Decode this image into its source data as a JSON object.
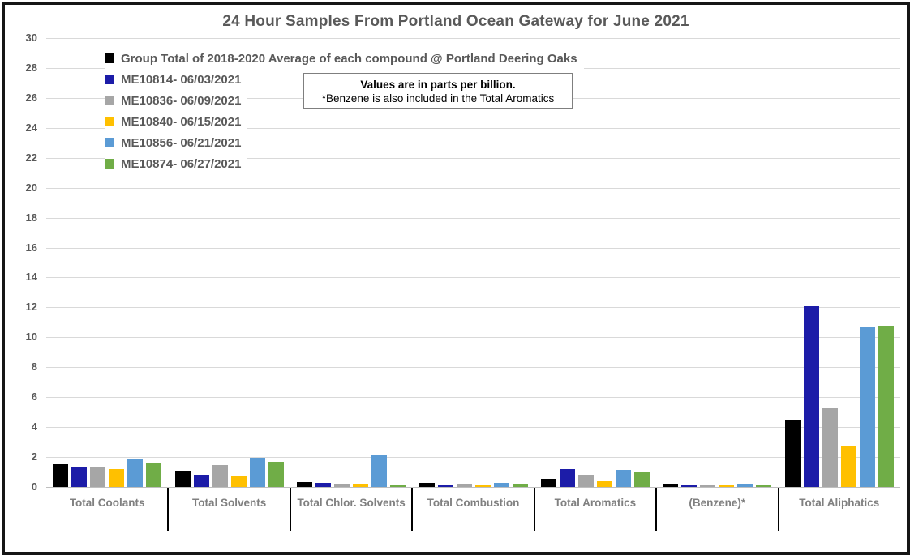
{
  "chart_data": {
    "type": "bar",
    "title": "24 Hour Samples From Portland Ocean Gateway for June 2021",
    "note": {
      "line1": "Values are in parts per billion.",
      "line2": "*Benzene is also included in the Total Aromatics"
    },
    "unit": "parts per billion",
    "categories": [
      "Total Coolants",
      "Total Solvents",
      "Total Chlor. Solvents",
      "Total Combustion",
      "Total Aromatics",
      "(Benzene)*",
      "Total Aliphatics"
    ],
    "series": [
      {
        "name": "Group Total of 2018-2020 Average of each compound @ Portland Deering Oaks",
        "color": "#000000",
        "values": [
          1.5,
          1.1,
          0.35,
          0.25,
          0.55,
          0.2,
          4.5
        ]
      },
      {
        "name": "ME10814- 06/03/2021",
        "color": "#1c1ca8",
        "values": [
          1.3,
          0.8,
          0.3,
          0.15,
          1.2,
          0.15,
          12.1
        ]
      },
      {
        "name": "ME10836- 06/09/2021",
        "color": "#a6a6a6",
        "values": [
          1.3,
          1.45,
          0.2,
          0.2,
          0.8,
          0.15,
          5.3
        ]
      },
      {
        "name": "ME10840- 06/15/2021",
        "color": "#ffc000",
        "values": [
          1.2,
          0.75,
          0.2,
          0.1,
          0.4,
          0.1,
          2.7
        ]
      },
      {
        "name": "ME10856- 06/21/2021",
        "color": "#5b9bd5",
        "values": [
          1.9,
          1.95,
          2.1,
          0.3,
          1.15,
          0.2,
          10.7
        ]
      },
      {
        "name": "ME10874- 06/27/2021",
        "color": "#70ad47",
        "values": [
          1.65,
          1.7,
          0.15,
          0.2,
          1.0,
          0.15,
          10.8
        ]
      }
    ],
    "ylim": [
      0,
      30
    ],
    "ytick_step": 2,
    "yticks": [
      0,
      2,
      4,
      6,
      8,
      10,
      12,
      14,
      16,
      18,
      20,
      22,
      24,
      26,
      28,
      30
    ],
    "grid": true,
    "legend_position": "top-left-vertical"
  },
  "colors": {
    "grid": "#d9d9d9",
    "baseline": "#bfbfbf",
    "title_text": "#595959",
    "legend_text": "#595959",
    "axis_text": "#595959",
    "category_text": "#808080",
    "separator": "#000000",
    "note_border": "#7f7f7f",
    "frame_border": "#161616"
  }
}
